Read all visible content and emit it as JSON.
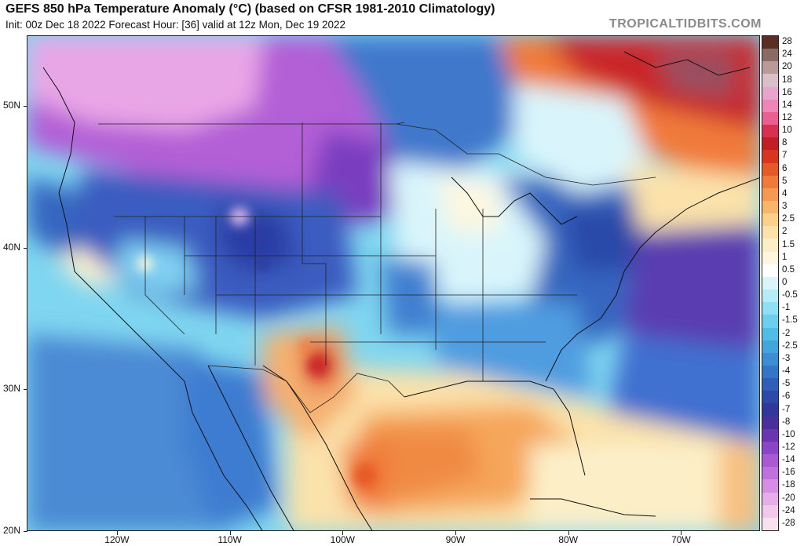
{
  "header": {
    "title": "GEFS 850 hPa Temperature Anomaly (°C) (based on CFSR 1981-2010 Climatology)",
    "subtitle": "Init: 00z Dec 18 2022   Forecast Hour: [36]   valid at 12z Mon, Dec 19 2022",
    "credit": "TROPICALTIDBITS.COM"
  },
  "map": {
    "lat_labels": [
      "50N",
      "40N",
      "30N",
      "20N"
    ],
    "lon_labels": [
      "120W",
      "110W",
      "100W",
      "90W",
      "80W",
      "70W"
    ],
    "lat_values": [
      50,
      40,
      30,
      20
    ],
    "lon_values": [
      -120,
      -110,
      -100,
      -90,
      -80,
      -70
    ],
    "lon_range": [
      -128,
      -63
    ],
    "lat_range": [
      20,
      55
    ]
  },
  "colorbar": {
    "labels": [
      "28",
      "24",
      "20",
      "18",
      "16",
      "14",
      "12",
      "10",
      "8",
      "7",
      "6",
      "5",
      "4",
      "3",
      "2.5",
      "2",
      "1.5",
      "1",
      "0.5",
      "0",
      "-0.5",
      "-1",
      "-1.5",
      "-2",
      "-2.5",
      "-3",
      "-4",
      "-5",
      "-6",
      "-7",
      "-8",
      "-10",
      "-12",
      "-14",
      "-16",
      "-18",
      "-20",
      "-24",
      "-28"
    ],
    "colors": [
      "#5a2e22",
      "#8a6a64",
      "#b99a98",
      "#d9c0c8",
      "#e7a4cf",
      "#ef86b8",
      "#ea5f8f",
      "#d8304f",
      "#c21e24",
      "#d83520",
      "#e65a28",
      "#f07a3a",
      "#f59a52",
      "#f8b66c",
      "#fad08a",
      "#fbe2aa",
      "#fcefc8",
      "#fdf7e0",
      "#ffffff",
      "#d9f5fb",
      "#b4ecf8",
      "#8fdff5",
      "#6ccfee",
      "#4fbde6",
      "#41a6dc",
      "#3b8ed2",
      "#3476c6",
      "#2e5eb8",
      "#2c4aa8",
      "#30389a",
      "#4a2e9a",
      "#6a36b0",
      "#8a46c6",
      "#a85ad2",
      "#c070dc",
      "#d68ee4",
      "#e6aee8",
      "#f0cae8",
      "#f8e2ee"
    ]
  }
}
